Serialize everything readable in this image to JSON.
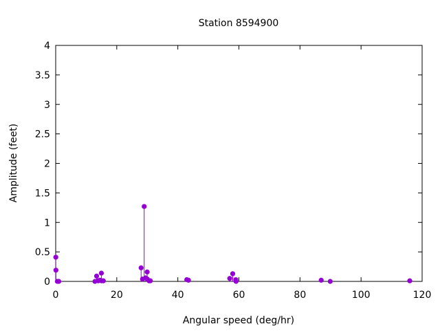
{
  "chart_data": {
    "type": "scatter",
    "style": "impulses with points",
    "title": "Station 8594900",
    "xlabel": "Angular speed (deg/hr)",
    "ylabel": "Amplitude (feet)",
    "xlim": [
      0,
      120
    ],
    "ylim": [
      0,
      4
    ],
    "xticks": [
      "0",
      "20",
      "40",
      "60",
      "80",
      "100",
      "120"
    ],
    "yticks": [
      "0",
      "0.5",
      "1",
      "1.5",
      "2",
      "2.5",
      "3",
      "3.5",
      "4"
    ],
    "grid": false,
    "legend": "none",
    "color": "#9400d3",
    "x": [
      0.04,
      0.08,
      0.54,
      1.02,
      12.85,
      13.4,
      13.94,
      14.5,
      14.96,
      15.04,
      15.59,
      27.97,
      28.44,
      28.98,
      29.46,
      29.96,
      30.0,
      30.6,
      31.0,
      42.93,
      43.48,
      57.0,
      57.97,
      58.98,
      59.07,
      86.95,
      89.9,
      115.94
    ],
    "y": [
      0.41,
      0.19,
      0.0,
      0.0,
      0.0,
      0.09,
      0.01,
      0.02,
      0.14,
      0.01,
      0.01,
      0.23,
      0.04,
      1.27,
      0.06,
      0.16,
      0.04,
      0.01,
      0.01,
      0.03,
      0.02,
      0.05,
      0.13,
      0.03,
      0.0,
      0.02,
      0.0,
      0.01
    ]
  }
}
